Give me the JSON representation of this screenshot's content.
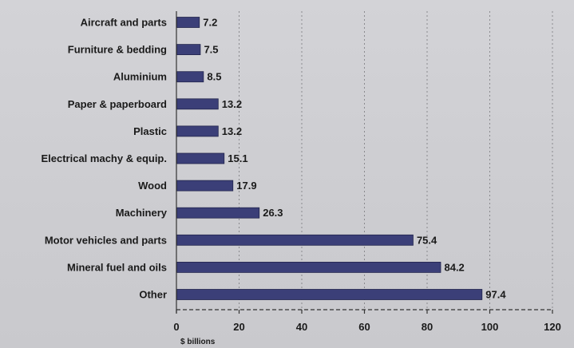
{
  "chart_data": {
    "type": "bar",
    "orientation": "horizontal",
    "categories": [
      "Aircraft and parts",
      "Furniture & bedding",
      "Aluminium",
      "Paper & paperboard",
      "Plastic",
      "Electrical machy & equip.",
      "Wood",
      "Machinery",
      "Motor vehicles and parts",
      "Mineral fuel and oils",
      "Other"
    ],
    "values": [
      7.2,
      7.5,
      8.5,
      13.2,
      13.2,
      15.1,
      17.9,
      26.3,
      75.4,
      84.2,
      97.4
    ],
    "value_labels": [
      "7.2",
      "7.5",
      "8.5",
      "13.2",
      "13.2",
      "15.1",
      "17.9",
      "26.3",
      "75.4",
      "84.2",
      "97.4"
    ],
    "xlabel": "$ billions",
    "xlim": [
      0,
      120
    ],
    "xticks": [
      0,
      20,
      40,
      60,
      80,
      100,
      120
    ],
    "xtick_labels": [
      "0",
      "20",
      "40",
      "60",
      "80",
      "100",
      "120"
    ],
    "grid": "vertical-dotted",
    "bar_color": "#3b3f78"
  }
}
